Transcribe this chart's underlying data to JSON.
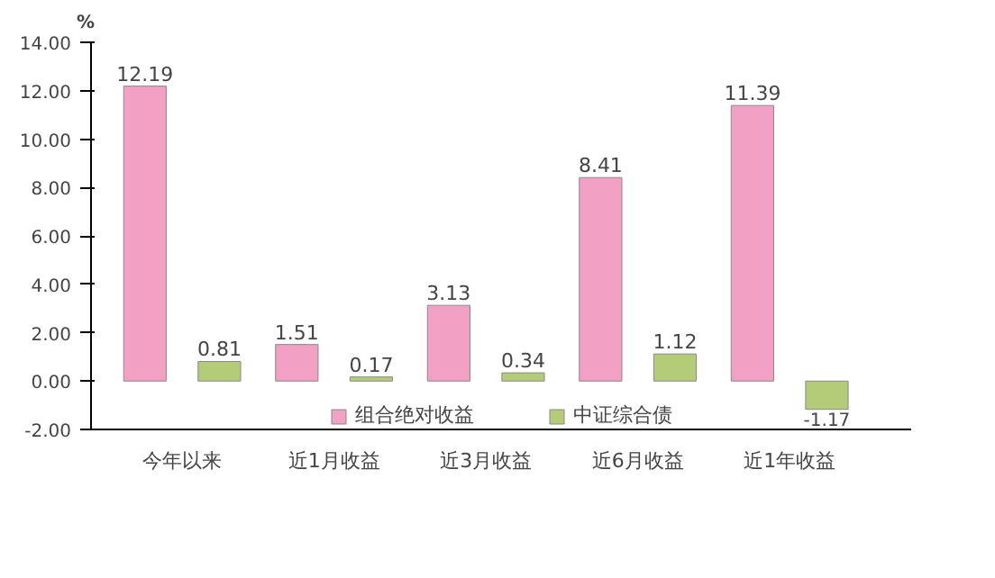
{
  "chart_data": {
    "type": "bar",
    "ylabel": "%",
    "categories": [
      "今年以来",
      "近1月收益",
      "近3月收益",
      "近6月收益",
      "近1年收益"
    ],
    "series": [
      {
        "name": "组合绝对收益",
        "color": "#f2a0c4",
        "values": [
          12.19,
          1.51,
          3.13,
          8.41,
          11.39
        ]
      },
      {
        "name": "中证综合债",
        "color": "#b4cc78",
        "values": [
          0.81,
          0.17,
          0.34,
          1.12,
          -1.17
        ]
      }
    ],
    "ylim": [
      -2,
      14
    ],
    "yticks": [
      {
        "value": -2,
        "label": "-2.00"
      },
      {
        "value": 0,
        "label": "0.00"
      },
      {
        "value": 2,
        "label": "2.00"
      },
      {
        "value": 4,
        "label": "4.00"
      },
      {
        "value": 6,
        "label": "6.00"
      },
      {
        "value": 8,
        "label": "8.00"
      },
      {
        "value": 10,
        "label": "10.00"
      },
      {
        "value": 12,
        "label": "12.00"
      },
      {
        "value": 14,
        "label": "14.00"
      }
    ],
    "data_labels": true,
    "legend": "bottom",
    "grid": false
  }
}
